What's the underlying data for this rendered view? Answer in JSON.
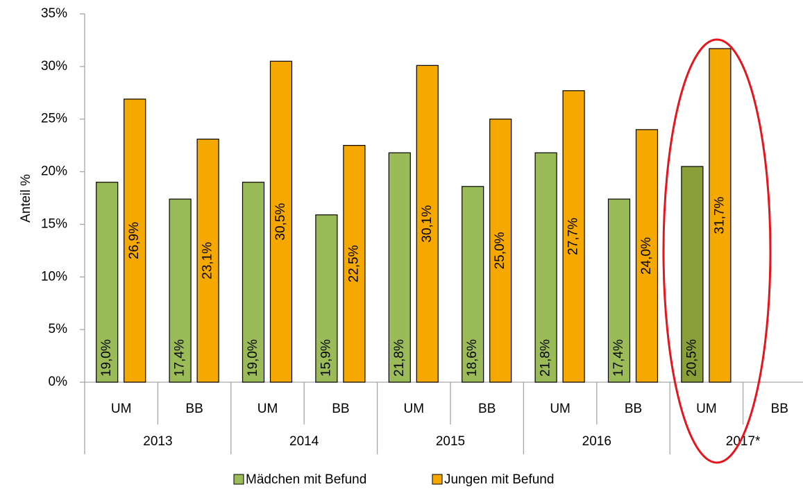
{
  "chart_data": {
    "type": "bar",
    "ylabel": "Anteil %",
    "categories": [
      "UM",
      "BB",
      "UM",
      "BB",
      "UM",
      "BB",
      "UM",
      "BB",
      "UM",
      "BB"
    ],
    "groups": [
      "2013",
      "2014",
      "2015",
      "2016",
      "2017*"
    ],
    "ylim": [
      0,
      35
    ],
    "yticks": [
      {
        "value": 0,
        "label": "0%"
      },
      {
        "value": 5,
        "label": "5%"
      },
      {
        "value": 10,
        "label": "10%"
      },
      {
        "value": 15,
        "label": "15%"
      },
      {
        "value": 20,
        "label": "20%"
      },
      {
        "value": 25,
        "label": "25%"
      },
      {
        "value": 30,
        "label": "30%"
      },
      {
        "value": 35,
        "label": "35%"
      }
    ],
    "grid": false,
    "legend": "bottom",
    "series": [
      {
        "name": "Mädchen mit Befund",
        "color": "#9bbb59",
        "colors": [
          "#9bbb59",
          "#9bbb59",
          "#9bbb59",
          "#9bbb59",
          "#9bbb59",
          "#9bbb59",
          "#9bbb59",
          "#9bbb59",
          "#8b9f38",
          "#9bbb59"
        ],
        "values": [
          19.0,
          17.4,
          19.0,
          15.9,
          21.8,
          18.6,
          21.8,
          17.4,
          20.5,
          null
        ],
        "value_labels": [
          "19,0%",
          "17,4%",
          "19,0%",
          "15,9%",
          "21,8%",
          "18,6%",
          "21,8%",
          "17,4%",
          "20,5%",
          null
        ]
      },
      {
        "name": "Jungen mit Befund",
        "color": "#f5a800",
        "values": [
          26.9,
          23.1,
          30.5,
          22.5,
          30.1,
          25.0,
          27.7,
          24.0,
          31.7,
          null
        ],
        "value_labels": [
          "26,9%",
          "23,1%",
          "30,5%",
          "22,5%",
          "30,1%",
          "25,0%",
          "27,7%",
          "24,0%",
          "31,7%",
          null
        ]
      }
    ]
  }
}
